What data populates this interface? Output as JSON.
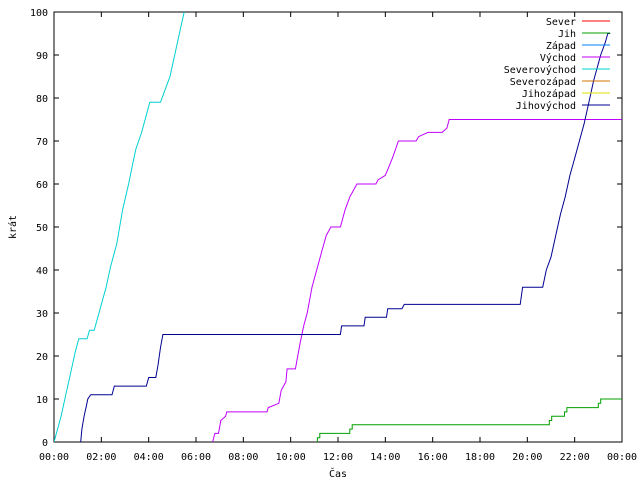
{
  "chart_data": {
    "type": "line",
    "xlabel": "Čas",
    "ylabel": "krát",
    "x_unit": "hour of day (0–24)",
    "xlim": [
      0,
      24
    ],
    "ylim": [
      0,
      100
    ],
    "x_ticks": [
      {
        "x": 0,
        "label": "00:00"
      },
      {
        "x": 2,
        "label": "02:00"
      },
      {
        "x": 4,
        "label": "04:00"
      },
      {
        "x": 6,
        "label": "06:00"
      },
      {
        "x": 8,
        "label": "08:00"
      },
      {
        "x": 10,
        "label": "10:00"
      },
      {
        "x": 12,
        "label": "12:00"
      },
      {
        "x": 14,
        "label": "14:00"
      },
      {
        "x": 16,
        "label": "16:00"
      },
      {
        "x": 18,
        "label": "18:00"
      },
      {
        "x": 20,
        "label": "20:00"
      },
      {
        "x": 22,
        "label": "22:00"
      },
      {
        "x": 24,
        "label": "00:00"
      }
    ],
    "y_ticks": [
      {
        "y": 0,
        "label": "0"
      },
      {
        "y": 10,
        "label": "10"
      },
      {
        "y": 20,
        "label": "20"
      },
      {
        "y": 30,
        "label": "30"
      },
      {
        "y": 40,
        "label": "40"
      },
      {
        "y": 50,
        "label": "50"
      },
      {
        "y": 60,
        "label": "60"
      },
      {
        "y": 70,
        "label": "70"
      },
      {
        "y": 80,
        "label": "80"
      },
      {
        "y": 90,
        "label": "90"
      },
      {
        "y": 100,
        "label": "100"
      }
    ],
    "grid": false,
    "legend_position": "top-right",
    "series": [
      {
        "name": "Sever",
        "color": "#ff0000",
        "points": []
      },
      {
        "name": "Jih",
        "color": "#00a000",
        "points": [
          [
            11.13,
            0
          ],
          [
            11.13,
            1
          ],
          [
            11.23,
            1
          ],
          [
            11.23,
            2
          ],
          [
            12.5,
            2
          ],
          [
            12.5,
            3
          ],
          [
            12.6,
            3
          ],
          [
            12.6,
            4
          ],
          [
            20.93,
            4
          ],
          [
            20.93,
            5
          ],
          [
            21.03,
            5
          ],
          [
            21.03,
            6
          ],
          [
            21.57,
            6
          ],
          [
            21.57,
            7
          ],
          [
            21.67,
            7
          ],
          [
            21.67,
            8
          ],
          [
            23.0,
            8
          ],
          [
            23.0,
            9
          ],
          [
            23.1,
            9
          ],
          [
            23.1,
            10
          ],
          [
            24.0,
            10
          ]
        ]
      },
      {
        "name": "Západ",
        "color": "#0080ff",
        "points": []
      },
      {
        "name": "Východ",
        "color": "#c000ff",
        "points": [
          [
            6.7,
            0
          ],
          [
            6.8,
            2
          ],
          [
            6.95,
            2
          ],
          [
            7.05,
            5
          ],
          [
            7.25,
            6
          ],
          [
            7.3,
            7
          ],
          [
            9.0,
            7
          ],
          [
            9.05,
            8
          ],
          [
            9.5,
            9
          ],
          [
            9.6,
            12
          ],
          [
            9.8,
            14
          ],
          [
            9.85,
            17
          ],
          [
            10.2,
            17
          ],
          [
            10.4,
            23
          ],
          [
            10.55,
            27
          ],
          [
            10.7,
            30
          ],
          [
            10.9,
            36
          ],
          [
            11.1,
            40
          ],
          [
            11.3,
            44
          ],
          [
            11.5,
            48
          ],
          [
            11.7,
            50
          ],
          [
            12.1,
            50
          ],
          [
            12.3,
            54
          ],
          [
            12.5,
            57
          ],
          [
            12.6,
            58
          ],
          [
            12.8,
            60
          ],
          [
            13.6,
            60
          ],
          [
            13.7,
            61
          ],
          [
            14.0,
            62
          ],
          [
            14.3,
            66
          ],
          [
            14.55,
            70
          ],
          [
            15.3,
            70
          ],
          [
            15.4,
            71
          ],
          [
            15.8,
            72
          ],
          [
            16.4,
            72
          ],
          [
            16.6,
            73
          ],
          [
            16.7,
            75
          ],
          [
            24.0,
            75
          ]
        ]
      },
      {
        "name": "Severovýchod",
        "color": "#00d0d0",
        "points": [
          [
            0.0,
            0
          ],
          [
            0.3,
            6
          ],
          [
            0.5,
            11
          ],
          [
            0.7,
            16
          ],
          [
            0.9,
            21
          ],
          [
            1.05,
            24
          ],
          [
            1.4,
            24
          ],
          [
            1.5,
            26
          ],
          [
            1.7,
            26
          ],
          [
            1.8,
            28
          ],
          [
            2.2,
            36
          ],
          [
            2.4,
            41
          ],
          [
            2.65,
            46
          ],
          [
            2.9,
            54
          ],
          [
            3.15,
            60
          ],
          [
            3.3,
            64
          ],
          [
            3.45,
            68
          ],
          [
            3.7,
            72
          ],
          [
            3.9,
            76
          ],
          [
            4.05,
            79
          ],
          [
            4.5,
            79
          ],
          [
            4.7,
            82
          ],
          [
            4.9,
            85
          ],
          [
            5.1,
            90
          ],
          [
            5.3,
            95
          ],
          [
            5.5,
            100
          ]
        ]
      },
      {
        "name": "Severozápad",
        "color": "#d07000",
        "points": []
      },
      {
        "name": "Jihozápad",
        "color": "#e0e000",
        "points": []
      },
      {
        "name": "Jihovýchod",
        "color": "#000090",
        "points": [
          [
            1.13,
            0
          ],
          [
            1.18,
            3
          ],
          [
            1.27,
            6
          ],
          [
            1.35,
            8
          ],
          [
            1.43,
            10
          ],
          [
            1.55,
            11
          ],
          [
            2.45,
            11
          ],
          [
            2.5,
            12
          ],
          [
            2.55,
            13
          ],
          [
            3.9,
            13
          ],
          [
            4.0,
            15
          ],
          [
            4.3,
            15
          ],
          [
            4.4,
            18
          ],
          [
            4.5,
            22
          ],
          [
            4.6,
            25
          ],
          [
            12.1,
            25
          ],
          [
            12.15,
            27
          ],
          [
            13.1,
            27
          ],
          [
            13.15,
            29
          ],
          [
            14.05,
            29
          ],
          [
            14.1,
            31
          ],
          [
            14.7,
            31
          ],
          [
            14.8,
            32
          ],
          [
            19.7,
            32
          ],
          [
            19.8,
            36
          ],
          [
            20.65,
            36
          ],
          [
            20.8,
            40
          ],
          [
            21.0,
            43
          ],
          [
            21.2,
            48
          ],
          [
            21.4,
            53
          ],
          [
            21.6,
            57
          ],
          [
            21.8,
            62
          ],
          [
            22.0,
            66
          ],
          [
            22.2,
            70
          ],
          [
            22.4,
            74
          ],
          [
            22.6,
            79
          ],
          [
            22.8,
            84
          ],
          [
            23.1,
            90
          ],
          [
            23.3,
            93
          ],
          [
            23.4,
            95
          ],
          [
            23.5,
            95
          ]
        ]
      }
    ]
  }
}
